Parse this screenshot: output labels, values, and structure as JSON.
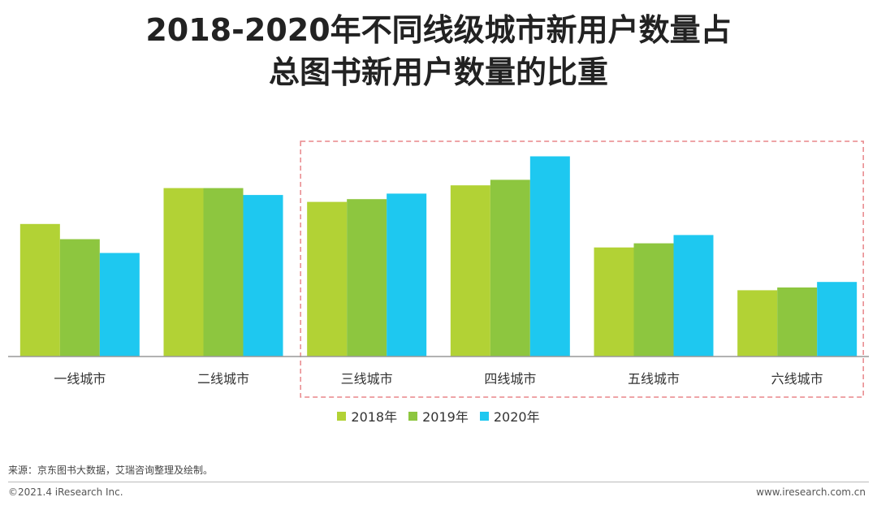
{
  "title_line1": "2018-2020年不同线级城市新用户数量占",
  "title_line2": "总图书新用户数量的比重",
  "chart_data": {
    "type": "bar",
    "categories": [
      "一线城市",
      "二线城市",
      "三线城市",
      "四线城市",
      "五线城市",
      "六线城市"
    ],
    "series": [
      {
        "name": "2018年",
        "color": "#B2D235",
        "values": [
          48,
          61,
          56,
          62,
          39.5,
          24
        ]
      },
      {
        "name": "2019年",
        "color": "#8DC63F",
        "values": [
          42.5,
          61,
          57,
          64,
          41,
          25
        ]
      },
      {
        "name": "2020年",
        "color": "#1EC8F0",
        "values": [
          37.5,
          58.5,
          59,
          72.5,
          44,
          27
        ]
      }
    ],
    "ylim": [
      0,
      85
    ],
    "highlight_categories": [
      "三线城市",
      "四线城市",
      "五线城市",
      "六线城市"
    ],
    "title": "2018-2020年不同线级城市新用户数量占总图书新用户数量的比重",
    "xlabel": "",
    "ylabel": ""
  },
  "colors": {
    "axis": "#999999",
    "highlight_border": "#E8868A"
  },
  "source_text": "来源：京东图书大数据，艾瑞咨询整理及绘制。",
  "copyright": "©2021.4 iResearch Inc.",
  "website": "www.iresearch.com.cn"
}
